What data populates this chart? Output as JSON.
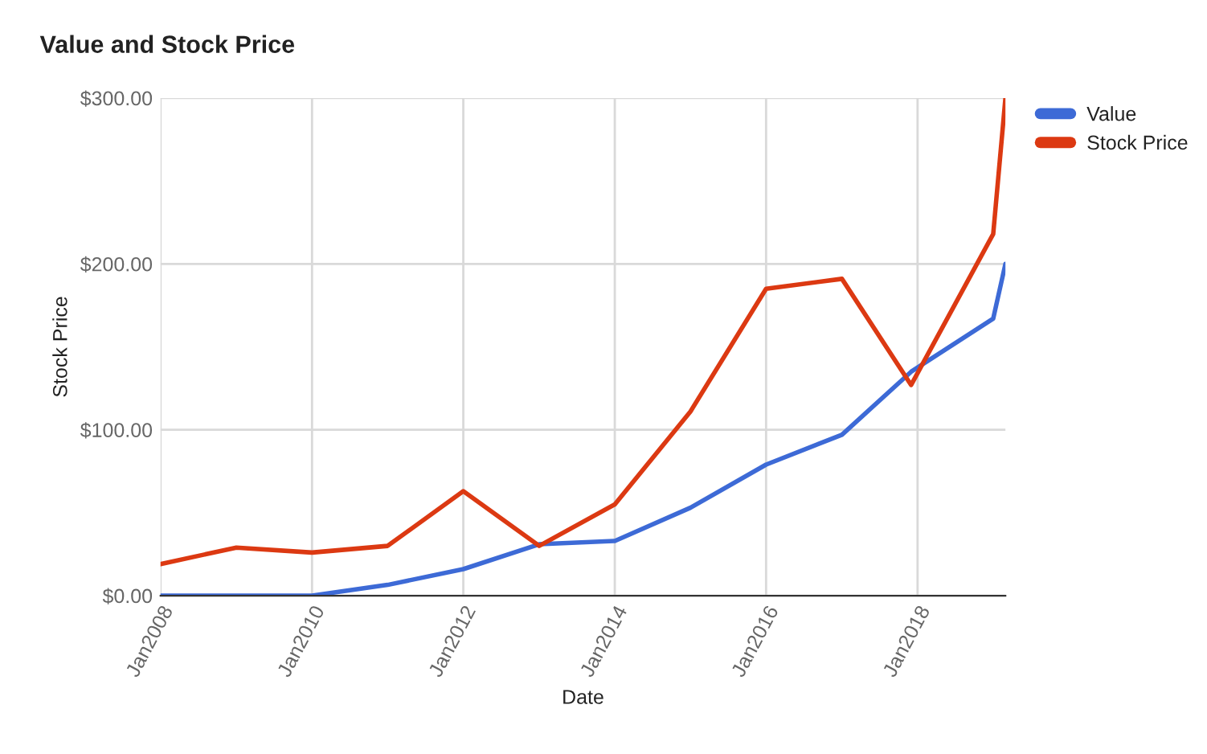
{
  "chart_data": {
    "type": "line",
    "title": "Value and Stock Price",
    "xlabel": "Date",
    "ylabel": "Stock Price",
    "x": [
      "2008-01",
      "2009-01",
      "2010-01",
      "2011-01",
      "2012-01",
      "2013-01",
      "2014-01",
      "2015-01",
      "2016-01",
      "2017-01",
      "2017-12",
      "2019-01",
      "2019-03"
    ],
    "series": [
      {
        "name": "Value",
        "color": "#3d6ad6",
        "values": [
          0,
          0,
          0,
          6.5,
          16,
          31,
          33,
          53,
          79,
          97,
          135,
          167,
          200
        ]
      },
      {
        "name": "Stock Price",
        "color": "#dc3912",
        "values": [
          19,
          29,
          26,
          30,
          63,
          30,
          55,
          111,
          185,
          191,
          127,
          218,
          300
        ]
      }
    ],
    "xlim": [
      "2008-01",
      "2019-03"
    ],
    "xticks": [
      {
        "value": "2008-01",
        "label": "Jan2008"
      },
      {
        "value": "2010-01",
        "label": "Jan2010"
      },
      {
        "value": "2012-01",
        "label": "Jan2012"
      },
      {
        "value": "2014-01",
        "label": "Jan2014"
      },
      {
        "value": "2016-01",
        "label": "Jan2016"
      },
      {
        "value": "2018-01",
        "label": "Jan2018"
      }
    ],
    "ylim": [
      0,
      300
    ],
    "yticks": [
      {
        "value": 0,
        "label": "$0.00"
      },
      {
        "value": 100,
        "label": "$100.00"
      },
      {
        "value": 200,
        "label": "$200.00"
      },
      {
        "value": 300,
        "label": "$300.00"
      }
    ],
    "grid": true,
    "legend": "top right",
    "marker": "none",
    "line_style": "solid"
  }
}
